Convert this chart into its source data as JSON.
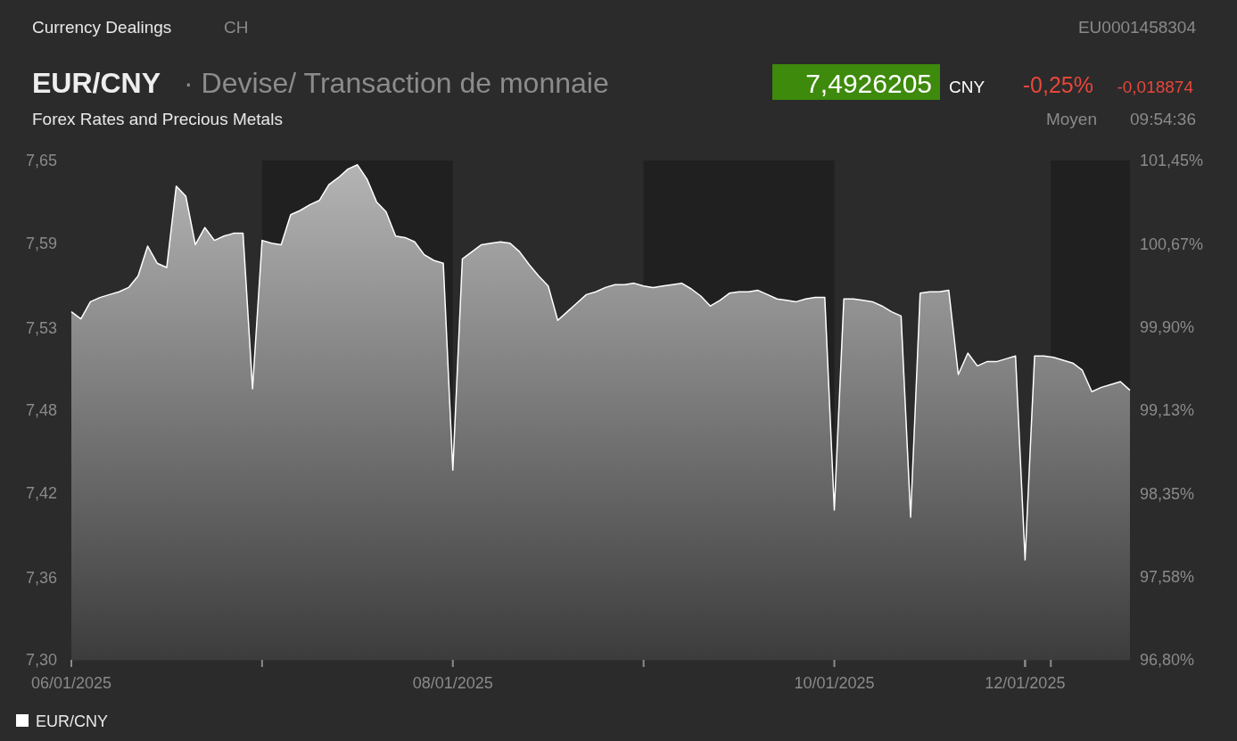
{
  "chart_data": {
    "type": "area",
    "title": "EUR/CNY",
    "subtitle": "· Devise/ Transaction de monnaie",
    "annotations": [
      "Currency Dealings",
      "CH",
      "EU0001458304",
      "7,4926205",
      "CNY",
      "-0,25%",
      "-0,018874",
      "Forex Rates and Precious Metals",
      "Moyen",
      "09:54:36"
    ],
    "categories": [
      "06/01/2025",
      null,
      null,
      null,
      null,
      null,
      null,
      null,
      null,
      null,
      null,
      null,
      null,
      null,
      null,
      null,
      null,
      null,
      null,
      null,
      null,
      null,
      null,
      null,
      null,
      null,
      null,
      null,
      null,
      null,
      null,
      null,
      null,
      null,
      null,
      null,
      null,
      null,
      null,
      null,
      "08/01/2025",
      null,
      null,
      null,
      null,
      null,
      null,
      null,
      null,
      null,
      null,
      null,
      null,
      null,
      null,
      null,
      null,
      null,
      null,
      null,
      null,
      null,
      null,
      null,
      null,
      null,
      null,
      null,
      null,
      null,
      null,
      null,
      null,
      null,
      null,
      null,
      null,
      null,
      null,
      null,
      "10/01/2025",
      null,
      null,
      null,
      null,
      null,
      null,
      null,
      null,
      null,
      null,
      null,
      null,
      null,
      null,
      null,
      null,
      null,
      null,
      null,
      "12/01/2025",
      null,
      null,
      null,
      null,
      null,
      null,
      null,
      null,
      null,
      null,
      null
    ],
    "series": [
      {
        "name": "EUR/CNY",
        "color": "#ffffff",
        "values": [
          7.544,
          7.539,
          7.551,
          7.554,
          7.556,
          7.558,
          7.561,
          7.569,
          7.59,
          7.578,
          7.575,
          7.632,
          7.625,
          7.591,
          7.603,
          7.594,
          7.597,
          7.599,
          7.599,
          7.49,
          7.594,
          7.592,
          7.591,
          7.612,
          7.615,
          7.619,
          7.622,
          7.633,
          7.638,
          7.644,
          7.647,
          7.637,
          7.621,
          7.614,
          7.597,
          7.596,
          7.593,
          7.584,
          7.58,
          7.578,
          7.433,
          7.581,
          7.586,
          7.591,
          7.592,
          7.593,
          7.592,
          7.586,
          7.577,
          7.569,
          7.562,
          7.538,
          7.544,
          7.55,
          7.556,
          7.558,
          7.561,
          7.563,
          7.563,
          7.564,
          7.562,
          7.561,
          7.562,
          7.563,
          7.564,
          7.56,
          7.555,
          7.548,
          7.552,
          7.557,
          7.558,
          7.558,
          7.559,
          7.556,
          7.553,
          7.552,
          7.551,
          7.553,
          7.554,
          7.554,
          7.405,
          7.553,
          7.553,
          7.552,
          7.551,
          7.548,
          7.544,
          7.541,
          7.4,
          7.557,
          7.558,
          7.558,
          7.559,
          7.5,
          7.515,
          7.506,
          7.509,
          7.509,
          7.511,
          7.513,
          7.37,
          7.513,
          7.513,
          7.512,
          7.51,
          7.508,
          7.503,
          7.488,
          7.491,
          7.493,
          7.495,
          7.489
        ]
      }
    ],
    "ylim": [
      7.3,
      7.65
    ],
    "yticks": [
      {
        "value": 7.3,
        "label": "7,30"
      },
      {
        "value": 7.358,
        "label": "7,36"
      },
      {
        "value": 7.417,
        "label": "7,42"
      },
      {
        "value": 7.475,
        "label": "7,48"
      },
      {
        "value": 7.533,
        "label": "7,53"
      },
      {
        "value": 7.592,
        "label": "7,59"
      },
      {
        "value": 7.65,
        "label": "7,65"
      }
    ],
    "y2lim": [
      96.8,
      101.45
    ],
    "y2ticks": [
      {
        "value": 96.8,
        "label": "96,80%"
      },
      {
        "value": 97.575,
        "label": "97,58%"
      },
      {
        "value": 98.35,
        "label": "98,35%"
      },
      {
        "value": 99.125,
        "label": "99,13%"
      },
      {
        "value": 99.9,
        "label": "99,90%"
      },
      {
        "value": 100.675,
        "label": "100,67%"
      },
      {
        "value": 101.45,
        "label": "101,45%"
      }
    ],
    "legend": "bottom left"
  }
}
